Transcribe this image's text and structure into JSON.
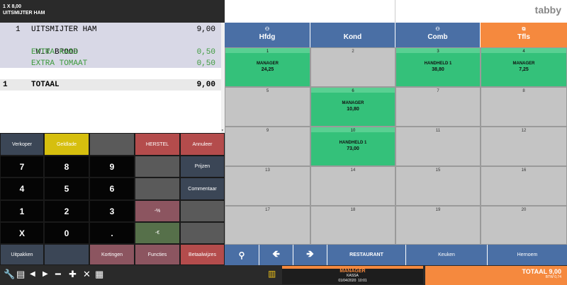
{
  "header": {
    "line1": "1 X 8,00",
    "line2": "UITSMIJTER HAM"
  },
  "receipt": {
    "lines": [
      {
        "qty": "1",
        "text": "UITSMIJTER HAM",
        "price": "9,00",
        "color": "black"
      },
      {
        "qty": "",
        "text": " WIT BROOD",
        "price": "",
        "color": "black"
      },
      {
        "qty": "",
        "text": "EXTRA KAAS",
        "price": "0,50",
        "color": "green"
      },
      {
        "qty": "",
        "text": "EXTRA TOMAAT",
        "price": "0,50",
        "color": "green"
      }
    ],
    "total": {
      "qty": "1",
      "label": "TOTAAL",
      "price": "9,00"
    }
  },
  "keypad": {
    "verkoper": "Verkoper",
    "geldlade": "Geldlade",
    "herstel": "HERSTEL",
    "annuleer": "Annuleer",
    "prijzen": "Prijzen",
    "commentaar": "Commentaar",
    "d7": "7",
    "d8": "8",
    "d9": "9",
    "d4": "4",
    "d5": "5",
    "d6": "6",
    "d1": "1",
    "d2": "2",
    "d3": "3",
    "x": "X",
    "d0": "0",
    "dot": ".",
    "percent": "-%",
    "euro": "-€",
    "uitpakken": "Uitpakken",
    "kortingen": "Kortingen",
    "functies": "Functies",
    "betaalwijzes": "Betaalwijzes"
  },
  "logo": "tabby",
  "tabs": [
    {
      "label": "Hfdg",
      "icon": "people-icon"
    },
    {
      "label": "Kond",
      "icon": ""
    },
    {
      "label": "Comb",
      "icon": "people-icon"
    },
    {
      "label": "Tfls",
      "icon": "copy-icon"
    }
  ],
  "tables": [
    {
      "n": "1",
      "who": "MANAGER",
      "amt": "24,25"
    },
    {
      "n": "2",
      "who": "",
      "amt": ""
    },
    {
      "n": "3",
      "who": "HANDHELD 1",
      "amt": "38,80"
    },
    {
      "n": "4",
      "who": "MANAGER",
      "amt": "7,25"
    },
    {
      "n": "5",
      "who": "",
      "amt": ""
    },
    {
      "n": "6",
      "who": "MANAGER",
      "amt": "10,80"
    },
    {
      "n": "7",
      "who": "",
      "amt": ""
    },
    {
      "n": "8",
      "who": "",
      "amt": ""
    },
    {
      "n": "9",
      "who": "",
      "amt": ""
    },
    {
      "n": "10",
      "who": "HANDHELD 1",
      "amt": "73,00"
    },
    {
      "n": "11",
      "who": "",
      "amt": ""
    },
    {
      "n": "12",
      "who": "",
      "amt": ""
    },
    {
      "n": "13",
      "who": "",
      "amt": ""
    },
    {
      "n": "14",
      "who": "",
      "amt": ""
    },
    {
      "n": "15",
      "who": "",
      "amt": ""
    },
    {
      "n": "16",
      "who": "",
      "amt": ""
    },
    {
      "n": "17",
      "who": "",
      "amt": ""
    },
    {
      "n": "18",
      "who": "",
      "amt": ""
    },
    {
      "n": "19",
      "who": "",
      "amt": ""
    },
    {
      "n": "20",
      "who": "",
      "amt": ""
    }
  ],
  "nav": {
    "restaurant": "RESTAURANT",
    "keuken": "Keuken",
    "hernoem": "Hernoem"
  },
  "status": {
    "user": "MANAGER",
    "register": "KASSA",
    "datetime": "01/04/2020  10:01",
    "total": "TOTAAL 9,00",
    "btw": "BTW 0,74"
  },
  "colors": {
    "accent": "#f5893e",
    "tab_blue": "#4a6fa5",
    "busy_green": "#34c17a"
  }
}
